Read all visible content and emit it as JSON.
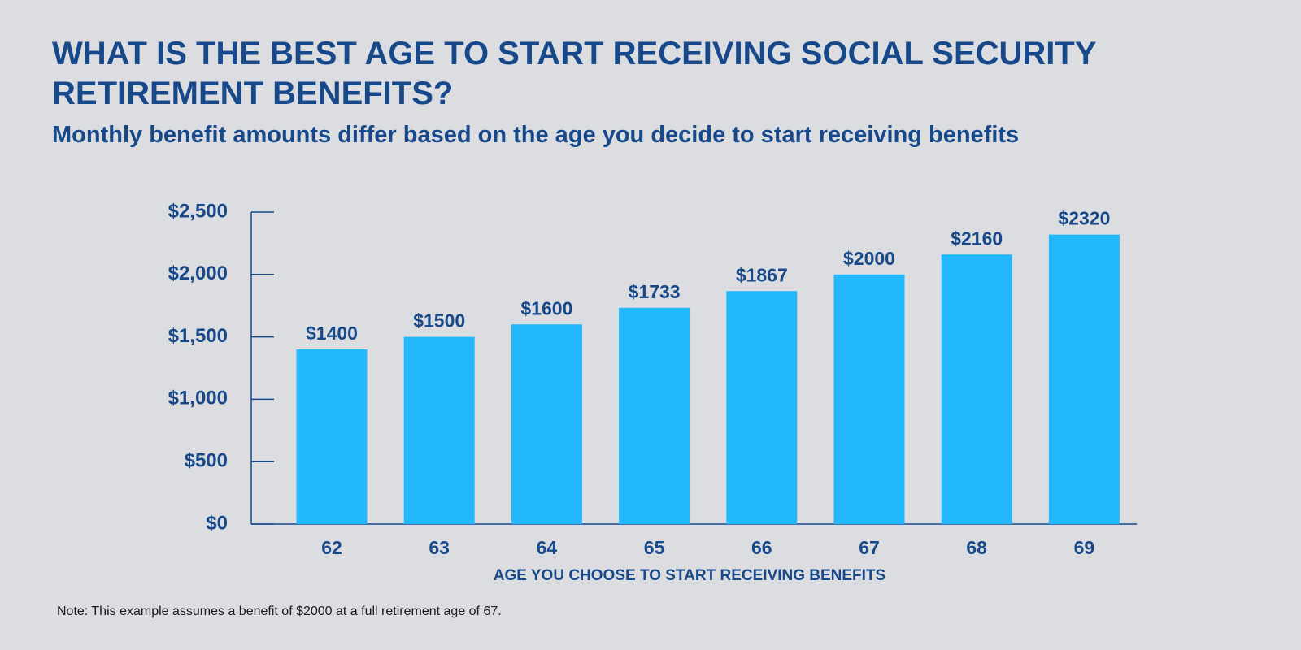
{
  "chart_data": {
    "type": "bar",
    "title": "WHAT IS THE BEST AGE TO START RECEIVING SOCIAL SECURITY RETIREMENT BENEFITS?",
    "subtitle": "Monthly benefit amounts differ based on the age you decide to start receiving benefits",
    "x_label": "AGE YOU CHOOSE TO START RECEIVING BENEFITS",
    "note": "Note: This example assumes a benefit of $2000 at a full retirement age of 67.",
    "categories": [
      "62",
      "63",
      "64",
      "65",
      "66",
      "67",
      "68",
      "69"
    ],
    "values": [
      1400,
      1500,
      1600,
      1733,
      1867,
      2000,
      2160,
      2320
    ],
    "value_labels": [
      "$1400",
      "$1500",
      "$1600",
      "$1733",
      "$1867",
      "$2000",
      "$2160",
      "$2320"
    ],
    "color": "#23b8fb",
    "ylim": [
      0,
      2500
    ],
    "yticks": [
      {
        "value": 0,
        "label": "$0"
      },
      {
        "value": 500,
        "label": "$500"
      },
      {
        "value": 1000,
        "label": "$1,000"
      },
      {
        "value": 1500,
        "label": "$1,500"
      },
      {
        "value": 2000,
        "label": "$2,000"
      },
      {
        "value": 2500,
        "label": "$2,500"
      }
    ],
    "grid": false
  }
}
